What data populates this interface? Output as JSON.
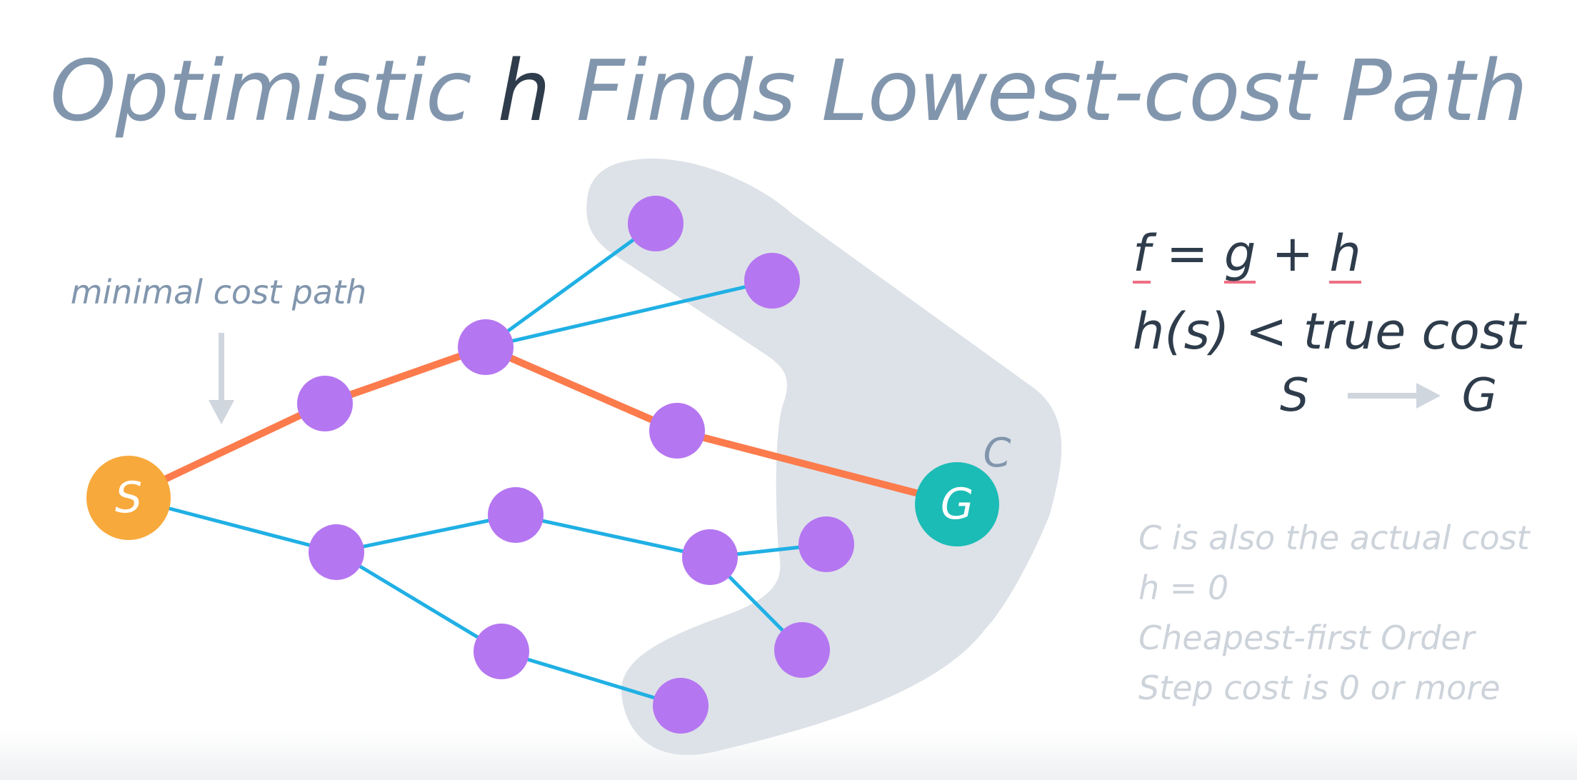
{
  "title": {
    "part1": "Optimistic ",
    "h": "h",
    "part2": " Finds Lowest-cost Path"
  },
  "annotation": {
    "minimal_cost_path": "minimal cost path"
  },
  "nodes": {
    "start_label": "S",
    "goal_label": "G",
    "contour_label": "C"
  },
  "formula": {
    "f": "f",
    "eq": " = ",
    "g": "g",
    "plus": " + ",
    "h": "h",
    "inequality": "h(s) < true cost",
    "from": "S",
    "to": "G"
  },
  "notes": [
    "C is also the actual cost",
    "h = 0",
    "Cheapest-first Order",
    "Step cost is 0 or more"
  ],
  "colors": {
    "node": "#b576f1",
    "start": "#f8a93c",
    "goal": "#1bbcb6",
    "optimal_edge": "#fc7b4c",
    "edge": "#20b0e4",
    "region": "#dde2e8",
    "title": "#8196ad",
    "text_dark": "#2e3c4b",
    "note": "#cdd3da"
  }
}
